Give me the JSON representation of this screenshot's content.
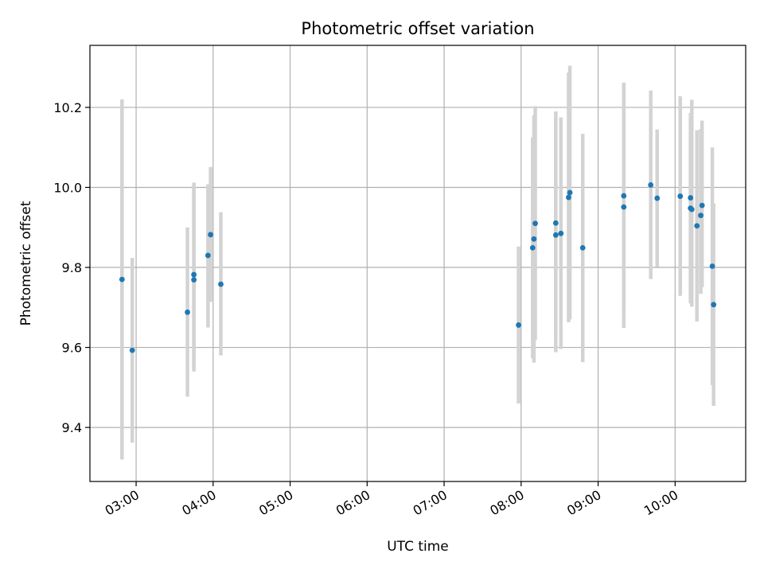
{
  "chart_data": {
    "type": "scatter",
    "title": "Photometric offset variation",
    "xlabel": "UTC time",
    "ylabel": "Photometric offset",
    "xlim": [
      "02:24",
      "10:55"
    ],
    "ylim": [
      9.265,
      10.355
    ],
    "grid": true,
    "x_ticks": [
      "03:00",
      "04:00",
      "05:00",
      "06:00",
      "07:00",
      "08:00",
      "09:00",
      "10:00"
    ],
    "y_ticks": [
      "9.4",
      "9.6",
      "9.8",
      "10.0",
      "10.2"
    ],
    "colors": {
      "points": "#1f77b4",
      "errorbars": "#d3d3d3",
      "grid": "#b0b0b0"
    },
    "points": [
      {
        "x": "02:49",
        "y": 9.77,
        "ylo": 9.32,
        "yhi": 10.22
      },
      {
        "x": "02:57",
        "y": 9.593,
        "ylo": 9.362,
        "yhi": 9.824
      },
      {
        "x": "03:40",
        "y": 9.688,
        "ylo": 9.477,
        "yhi": 9.9
      },
      {
        "x": "03:45",
        "y": 9.769,
        "ylo": 9.54,
        "yhi": 9.998
      },
      {
        "x": "03:45",
        "y": 9.782,
        "ylo": 9.553,
        "yhi": 10.012
      },
      {
        "x": "03:56",
        "y": 9.83,
        "ylo": 9.65,
        "yhi": 10.008
      },
      {
        "x": "03:58",
        "y": 9.882,
        "ylo": 9.714,
        "yhi": 10.051
      },
      {
        "x": "04:06",
        "y": 9.758,
        "ylo": 9.58,
        "yhi": 9.938
      },
      {
        "x": "07:58",
        "y": 9.656,
        "ylo": 9.46,
        "yhi": 9.852
      },
      {
        "x": "08:09",
        "y": 9.849,
        "ylo": 9.573,
        "yhi": 10.125
      },
      {
        "x": "08:10",
        "y": 9.871,
        "ylo": 9.562,
        "yhi": 10.18
      },
      {
        "x": "08:11",
        "y": 9.91,
        "ylo": 9.618,
        "yhi": 10.203
      },
      {
        "x": "08:27",
        "y": 9.911,
        "ylo": 9.632,
        "yhi": 10.19
      },
      {
        "x": "08:27",
        "y": 9.881,
        "ylo": 9.588,
        "yhi": 10.175
      },
      {
        "x": "08:31",
        "y": 9.885,
        "ylo": 9.596,
        "yhi": 10.175
      },
      {
        "x": "08:37",
        "y": 9.975,
        "ylo": 9.663,
        "yhi": 10.287
      },
      {
        "x": "08:38",
        "y": 9.987,
        "ylo": 9.67,
        "yhi": 10.304
      },
      {
        "x": "08:48",
        "y": 9.849,
        "ylo": 9.563,
        "yhi": 10.134
      },
      {
        "x": "09:20",
        "y": 9.979,
        "ylo": 9.698,
        "yhi": 10.262
      },
      {
        "x": "09:20",
        "y": 9.951,
        "ylo": 9.649,
        "yhi": 10.254
      },
      {
        "x": "09:41",
        "y": 10.006,
        "ylo": 9.771,
        "yhi": 10.242
      },
      {
        "x": "09:46",
        "y": 9.973,
        "ylo": 9.801,
        "yhi": 10.145
      },
      {
        "x": "10:04",
        "y": 9.978,
        "ylo": 9.729,
        "yhi": 10.228
      },
      {
        "x": "10:12",
        "y": 9.974,
        "ylo": 9.724,
        "yhi": 10.186
      },
      {
        "x": "10:12",
        "y": 9.948,
        "ylo": 9.71,
        "yhi": 10.17
      },
      {
        "x": "10:13",
        "y": 9.945,
        "ylo": 9.702,
        "yhi": 10.219
      },
      {
        "x": "10:17",
        "y": 9.904,
        "ylo": 9.665,
        "yhi": 10.143
      },
      {
        "x": "10:20",
        "y": 9.93,
        "ylo": 9.734,
        "yhi": 10.146
      },
      {
        "x": "10:21",
        "y": 9.955,
        "ylo": 9.751,
        "yhi": 10.167
      },
      {
        "x": "10:29",
        "y": 9.803,
        "ylo": 9.506,
        "yhi": 10.1
      },
      {
        "x": "10:30",
        "y": 9.707,
        "ylo": 9.454,
        "yhi": 9.96
      }
    ]
  }
}
